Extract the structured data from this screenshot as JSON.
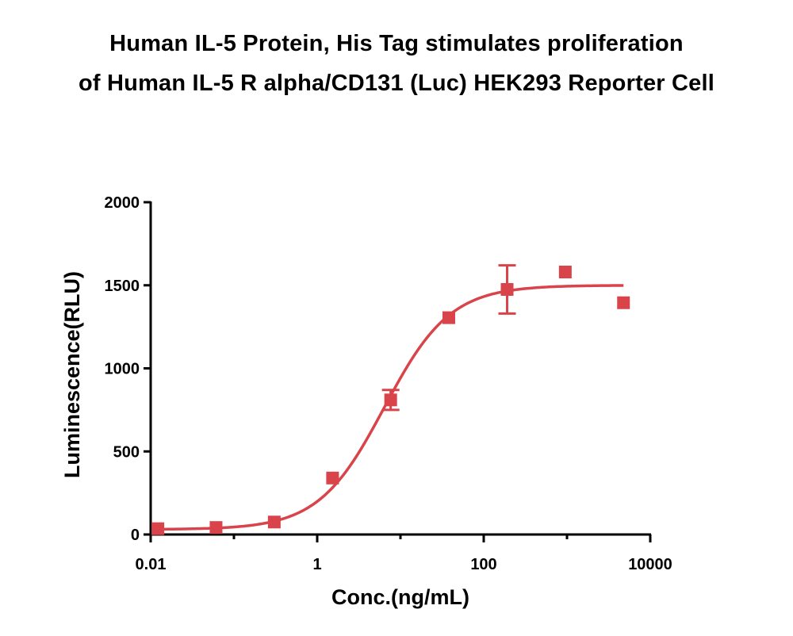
{
  "chart_data": {
    "type": "scatter",
    "title_lines": [
      "Human IL-5 Protein, His Tag stimulates proliferation",
      "of Human IL-5 R alpha/CD131 (Luc) HEK293 Reporter Cell"
    ],
    "xlabel": "Conc.(ng/mL)",
    "ylabel": "Luminescence(RLU)",
    "x_scale": "log",
    "xlim": [
      0.01,
      10000
    ],
    "ylim": [
      0,
      2000
    ],
    "x_ticks": [
      {
        "value": 0.01,
        "label": "0.01"
      },
      {
        "value": 1,
        "label": "1"
      },
      {
        "value": 100,
        "label": "100"
      },
      {
        "value": 10000,
        "label": "10000"
      }
    ],
    "y_ticks": [
      {
        "value": 0,
        "label": "0"
      },
      {
        "value": 500,
        "label": "500"
      },
      {
        "value": 1000,
        "label": "1000"
      },
      {
        "value": 1500,
        "label": "1500"
      },
      {
        "value": 2000,
        "label": "2000"
      }
    ],
    "series_color": "#d9434a",
    "points": [
      {
        "x": 0.0122,
        "y": 35,
        "err": 0
      },
      {
        "x": 0.061,
        "y": 42,
        "err": 0
      },
      {
        "x": 0.305,
        "y": 75,
        "err": 0
      },
      {
        "x": 1.53,
        "y": 340,
        "err": 0
      },
      {
        "x": 7.63,
        "y": 810,
        "err": 60
      },
      {
        "x": 38.1,
        "y": 1305,
        "err": 0
      },
      {
        "x": 191,
        "y": 1475,
        "err": 145
      },
      {
        "x": 954,
        "y": 1580,
        "err": 0
      },
      {
        "x": 4770,
        "y": 1395,
        "err": 0
      }
    ],
    "fit": {
      "model": "4PL",
      "bottom": 30,
      "top": 1500,
      "ec50": 6.4,
      "hill": 1.1,
      "x_range": [
        0.0122,
        4770
      ]
    }
  }
}
